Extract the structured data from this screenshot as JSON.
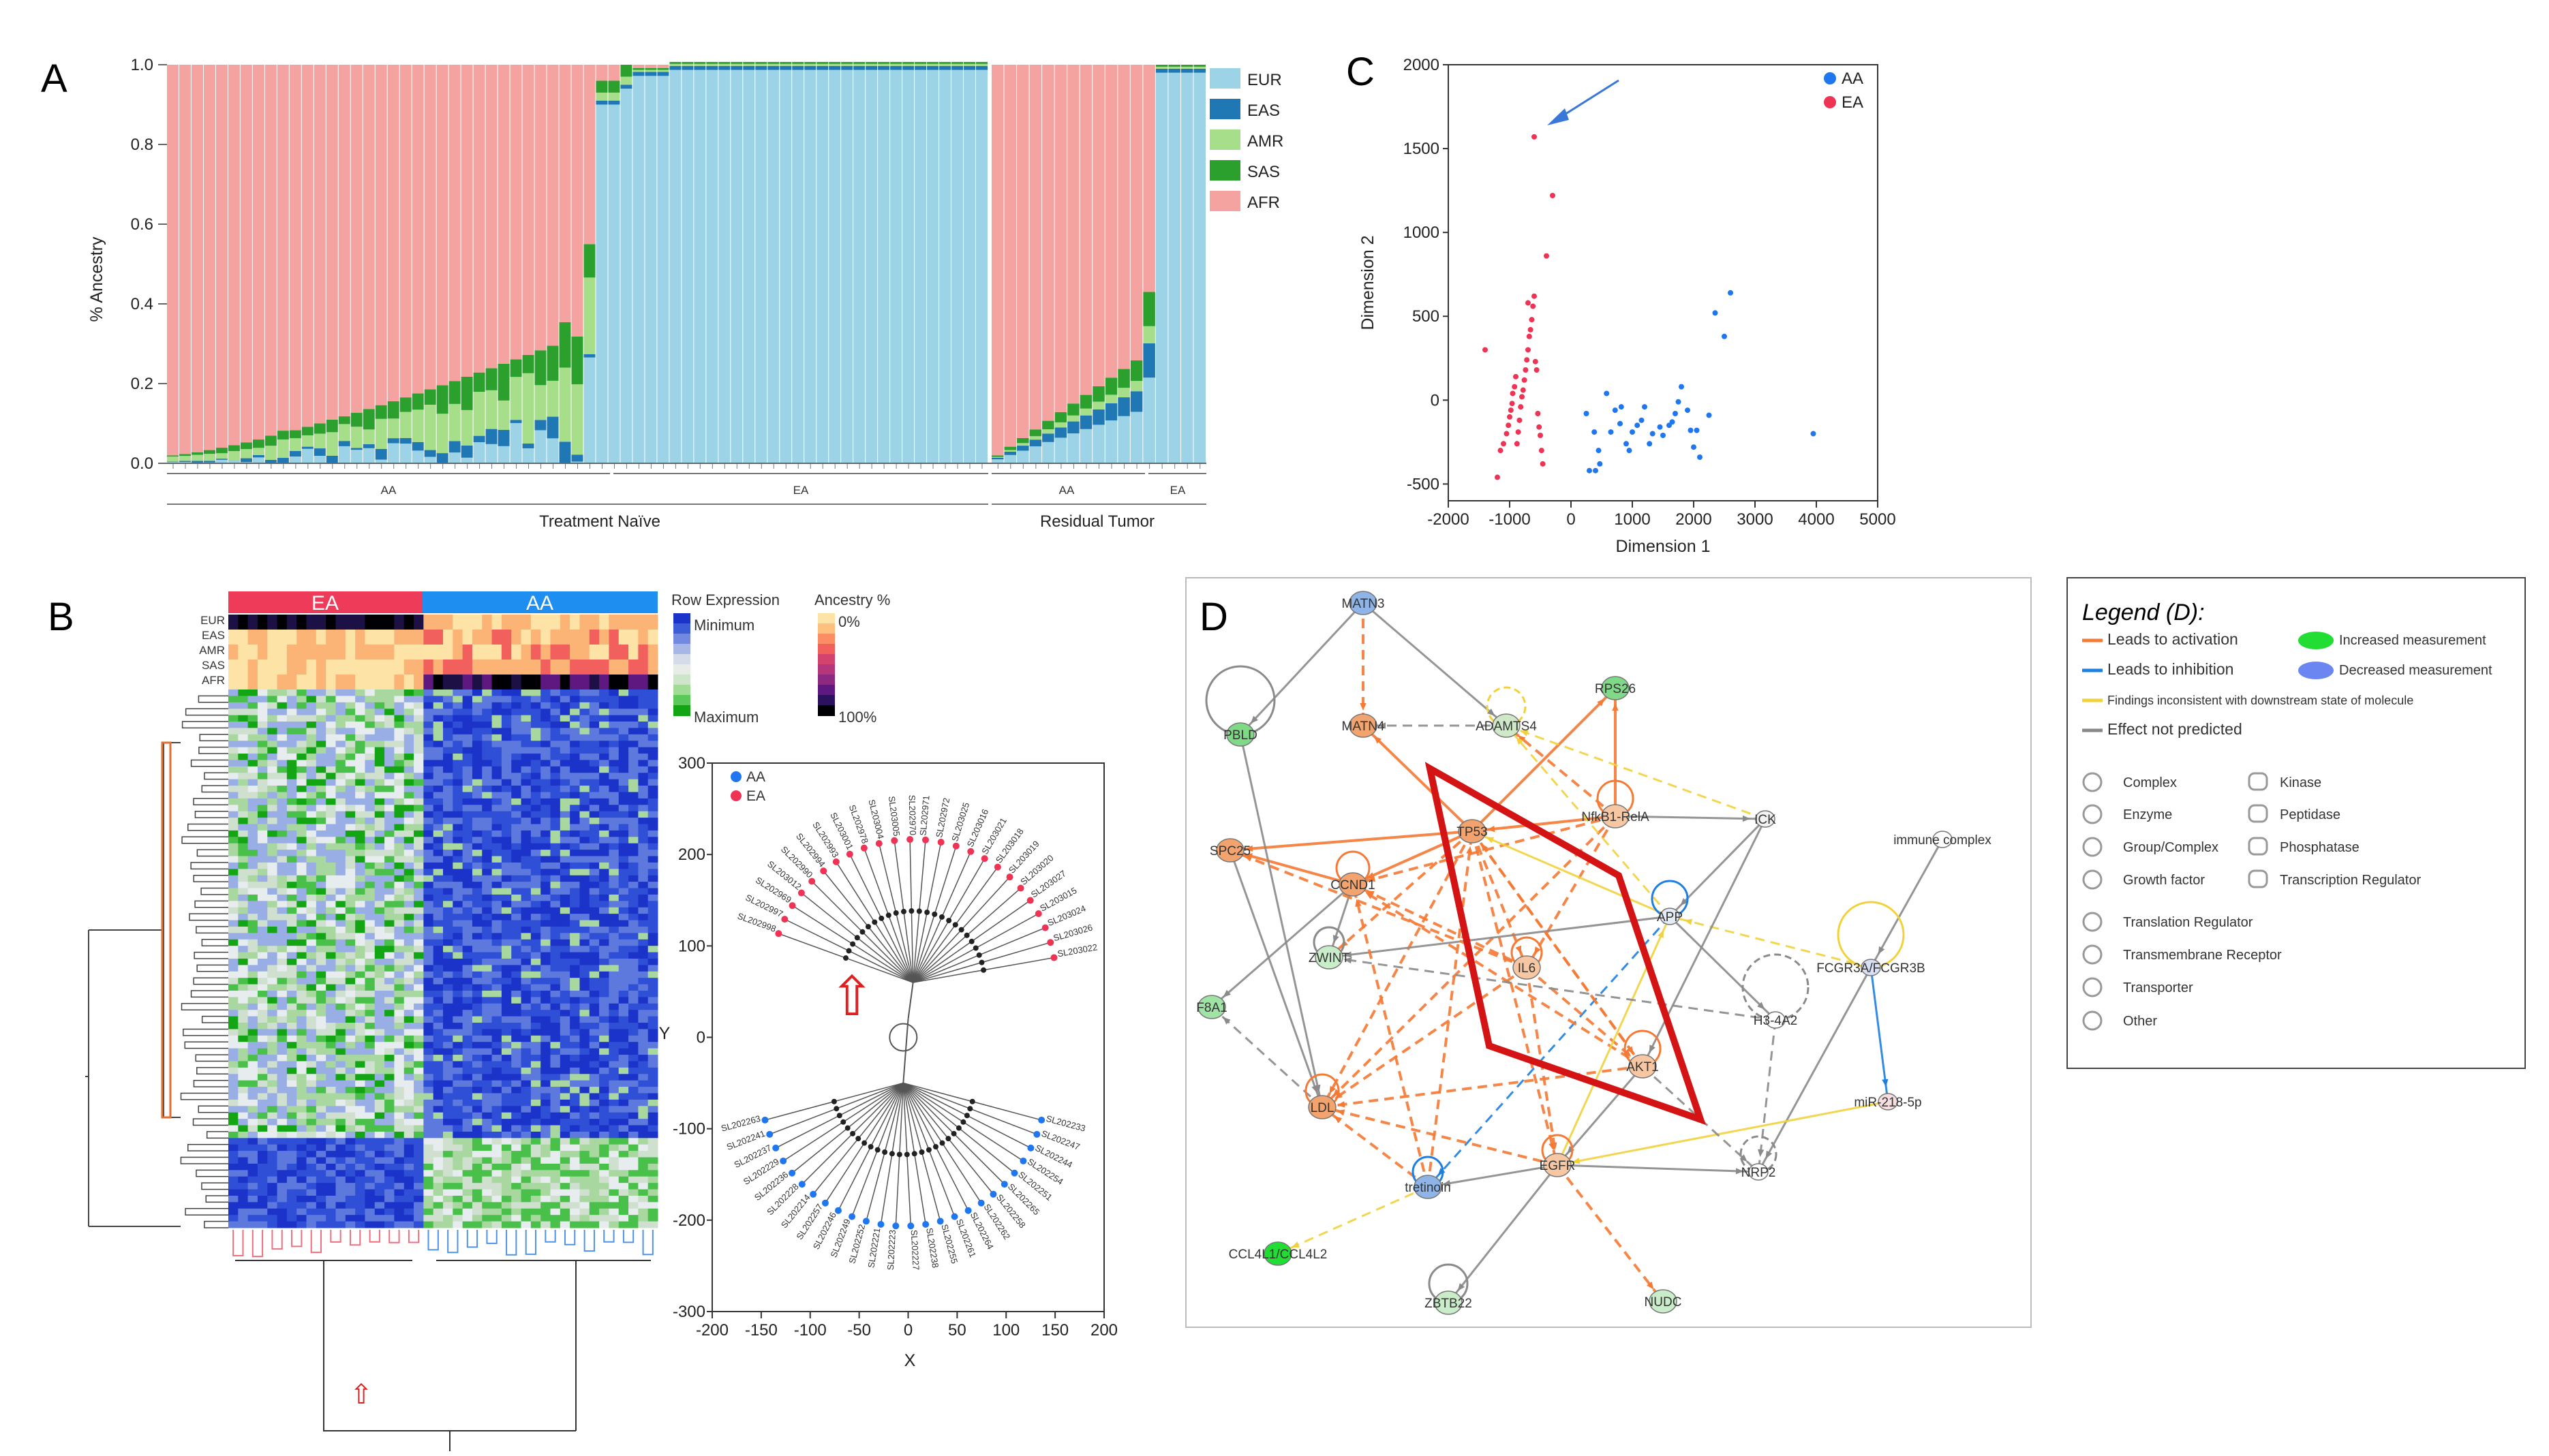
{
  "panels": {
    "a": "A",
    "b": "B",
    "c": "C",
    "d": "D"
  },
  "panelA": {
    "ylabel": "% Ancestry",
    "yticks": [
      "0.0",
      "0.2",
      "0.4",
      "0.6",
      "0.8",
      "1.0"
    ],
    "legend": [
      {
        "name": "EUR",
        "color": "#9dd3e6"
      },
      {
        "name": "EAS",
        "color": "#1f78b4"
      },
      {
        "name": "AMR",
        "color": "#a6de8a"
      },
      {
        "name": "SAS",
        "color": "#2ca02c"
      },
      {
        "name": "AFR",
        "color": "#f5a3a0"
      }
    ],
    "groups": {
      "tn_aa": "AA",
      "tn_ea": "EA",
      "rt_aa": "AA",
      "rt_ea": "EA"
    },
    "sections": {
      "treatment": "Treatment Naïve",
      "residual": "Residual Tumor"
    }
  },
  "chart_data": [
    {
      "type": "bar",
      "title": "",
      "xlabel": "",
      "ylabel": "% Ancestry",
      "ylim": [
        0,
        1
      ],
      "stacked": true,
      "sample_groups": [
        {
          "section": "Treatment Naïve",
          "group": "AA",
          "n": 35
        },
        {
          "section": "Treatment Naïve",
          "group": "EA",
          "n": 32
        },
        {
          "section": "Residual Tumor",
          "group": "AA",
          "n": 13
        },
        {
          "section": "Residual Tumor",
          "group": "EA",
          "n": 4
        }
      ],
      "series_names": [
        "EUR",
        "EAS",
        "AMR",
        "SAS",
        "AFR"
      ],
      "aa_profile_start_non_afr": 0.02,
      "aa_profile_end_non_afr": 0.33
    },
    {
      "type": "scatter",
      "title": "",
      "xlabel": "Dimension 1",
      "ylabel": "Dimension 2",
      "xlim": [
        -2000,
        5000
      ],
      "ylim": [
        -600,
        2000
      ],
      "xticks": [
        "-2000",
        "-1000",
        "0",
        "1000",
        "2000",
        "3000",
        "4000",
        "5000"
      ],
      "yticks": [
        "-500",
        "0",
        "500",
        "1000",
        "1500",
        "2000"
      ],
      "legend": [
        {
          "name": "AA",
          "color": "#1f77f0"
        },
        {
          "name": "EA",
          "color": "#ee3355"
        }
      ],
      "series": [
        {
          "name": "AA",
          "points": [
            [
              250,
              -80
            ],
            [
              380,
              -190
            ],
            [
              450,
              -300
            ],
            [
              470,
              -380
            ],
            [
              400,
              -420
            ],
            [
              650,
              -190
            ],
            [
              720,
              -60
            ],
            [
              800,
              -140
            ],
            [
              820,
              -40
            ],
            [
              900,
              -260
            ],
            [
              950,
              -300
            ],
            [
              1000,
              -190
            ],
            [
              1080,
              -150
            ],
            [
              1150,
              -120
            ],
            [
              1200,
              -40
            ],
            [
              1280,
              -260
            ],
            [
              1330,
              -200
            ],
            [
              1450,
              -160
            ],
            [
              1500,
              -210
            ],
            [
              1600,
              -150
            ],
            [
              1650,
              -130
            ],
            [
              1700,
              -80
            ],
            [
              1750,
              -10
            ],
            [
              1800,
              80
            ],
            [
              1900,
              -60
            ],
            [
              1950,
              -180
            ],
            [
              2000,
              -280
            ],
            [
              2050,
              -180
            ],
            [
              2100,
              -340
            ],
            [
              2250,
              -90
            ],
            [
              2350,
              520
            ],
            [
              2500,
              380
            ],
            [
              2600,
              640
            ],
            [
              3950,
              -200
            ],
            [
              580,
              40
            ],
            [
              300,
              -420
            ]
          ]
        },
        {
          "name": "EA",
          "points": [
            [
              -1200,
              -460
            ],
            [
              -1150,
              -300
            ],
            [
              -1100,
              -260
            ],
            [
              -1050,
              -200
            ],
            [
              -1020,
              -150
            ],
            [
              -1000,
              -100
            ],
            [
              -980,
              -60
            ],
            [
              -960,
              -20
            ],
            [
              -950,
              40
            ],
            [
              -920,
              80
            ],
            [
              -900,
              140
            ],
            [
              -880,
              -260
            ],
            [
              -860,
              -190
            ],
            [
              -840,
              -120
            ],
            [
              -820,
              -40
            ],
            [
              -800,
              20
            ],
            [
              -780,
              60
            ],
            [
              -760,
              120
            ],
            [
              -740,
              180
            ],
            [
              -720,
              240
            ],
            [
              -700,
              300
            ],
            [
              -680,
              380
            ],
            [
              -660,
              420
            ],
            [
              -640,
              480
            ],
            [
              -620,
              560
            ],
            [
              -600,
              620
            ],
            [
              -580,
              230
            ],
            [
              -560,
              180
            ],
            [
              -540,
              -80
            ],
            [
              -520,
              -160
            ],
            [
              -500,
              -210
            ],
            [
              -480,
              -300
            ],
            [
              -460,
              -380
            ],
            [
              -1400,
              300
            ],
            [
              -700,
              580
            ],
            [
              -400,
              860
            ],
            [
              -300,
              1220
            ],
            [
              -600,
              1570
            ]
          ]
        }
      ]
    },
    {
      "type": "scatter",
      "title": "",
      "xlabel": "X",
      "ylabel": "Y",
      "xlim": [
        -200,
        200
      ],
      "ylim": [
        -300,
        300
      ],
      "xticks": [
        "-200",
        "-150",
        "-100",
        "-50",
        "0",
        "50",
        "100",
        "150",
        "200"
      ],
      "yticks": [
        "-300",
        "-200",
        "-100",
        "0",
        "100",
        "200",
        "300"
      ],
      "legend": [
        {
          "name": "AA",
          "color": "#1f77f0"
        },
        {
          "name": "EA",
          "color": "#ee3355"
        }
      ]
    }
  ],
  "panelB": {
    "left_group": "EA",
    "right_group": "AA",
    "ancestry_rows": [
      "EUR",
      "EAS",
      "AMR",
      "SAS",
      "AFR"
    ],
    "row_expression_title": "Row Expression",
    "row_min": "Minimum",
    "row_max": "Maximum",
    "ancestry_title": "Ancestry %",
    "anc_min": "0%",
    "anc_max": "100%",
    "tree_legend": [
      {
        "name": "AA"
      },
      {
        "name": "EA"
      }
    ],
    "tree_axes": {
      "xlabel": "X",
      "ylabel": "Y"
    },
    "ea_labels": [
      "SL202998",
      "SL202997",
      "SL202969",
      "SL203012",
      "SL202990",
      "SL202994",
      "SL202993",
      "SL203001",
      "SL202978",
      "SL203004",
      "SL203005",
      "SL202970",
      "SL202971",
      "SL202972",
      "SL203025",
      "SL203016",
      "SL203021",
      "SL203018",
      "SL203019",
      "SL203020",
      "SL203027",
      "SL203015",
      "SL203024",
      "SL203026",
      "SL203022"
    ],
    "aa_labels": [
      "SL202263",
      "SL202241",
      "SL202237",
      "SL202229",
      "SL202236",
      "SL202228",
      "SL202214",
      "SL202257",
      "SL202246",
      "SL202249",
      "SL202252",
      "SL202221",
      "SL202223",
      "SL202227",
      "SL202238",
      "SL202255",
      "SL202261",
      "SL202264",
      "SL202262",
      "SL202258",
      "SL202265",
      "SL202251",
      "SL202254",
      "SL202244",
      "SL202247",
      "SL202233"
    ]
  },
  "panelD": {
    "nodes": [
      "MATN3",
      "MATN4",
      "ADAMTS4",
      "RPS26",
      "PBLD",
      "SPC25",
      "TP53",
      "NfkB1-RelA",
      "ICK",
      "CCND1",
      "immune complex",
      "APP",
      "ZWINT",
      "IL6",
      "FCGR3A/FCGR3B",
      "F8A1",
      "H3-4A2",
      "AKT1",
      "LDL",
      "miR-218-5p",
      "EGFR",
      "NRP2",
      "tretinoin",
      "CCL4L1/CCL4L2",
      "ZBTB22",
      "NUDC"
    ]
  },
  "legendD": {
    "title": "Legend (D):",
    "lines": [
      {
        "label": "Leads to activation",
        "color": "#f47a35"
      },
      {
        "label": "Leads to inhibition",
        "color": "#1f7fe0"
      },
      {
        "label": "Findings inconsistent with downstream state of molecule",
        "color": "#f2d23c"
      },
      {
        "label": "Effect not predicted",
        "color": "#888888"
      }
    ],
    "measures": [
      {
        "label": "Increased measurement",
        "color": "#22dd33"
      },
      {
        "label": "Decreased measurement",
        "color": "#6b86f0"
      }
    ],
    "shapes_left": [
      "Complex",
      "Enzyme",
      "Group/Complex",
      "Growth factor",
      "Translation Regulator",
      "Transmembrane Receptor",
      "Transporter",
      "Other"
    ],
    "shapes_right": [
      "Kinase",
      "Peptidase",
      "Phosphatase",
      "Transcription Regulator"
    ]
  }
}
